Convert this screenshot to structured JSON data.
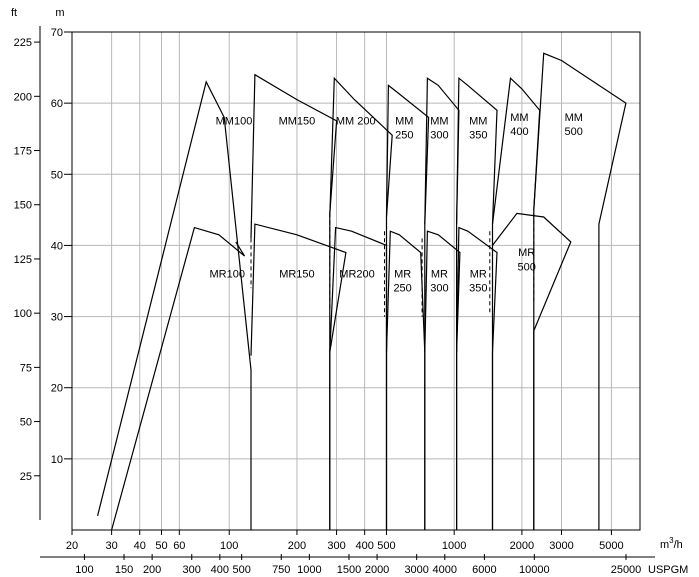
{
  "chart_data": {
    "type": "line",
    "title": "",
    "axes": {
      "y_left_ft": {
        "unit": "ft",
        "ticks": [
          25,
          50,
          75,
          100,
          125,
          150,
          175,
          200,
          225
        ]
      },
      "y_left_m": {
        "unit": "m",
        "ticks": [
          10,
          20,
          30,
          40,
          50,
          60,
          70
        ]
      },
      "x_m3h": {
        "unit": "m3/h",
        "ticks": [
          20,
          30,
          40,
          50,
          60,
          100,
          200,
          300,
          400,
          500,
          1000,
          2000,
          3000,
          5000
        ]
      },
      "x_usgpm": {
        "unit": "USPGM",
        "ticks": [
          100,
          150,
          200,
          300,
          400,
          500,
          750,
          1000,
          1500,
          2000,
          3000,
          4000,
          6000,
          10000,
          25000
        ]
      }
    },
    "ylim_m": [
      0,
      70
    ],
    "grid": true,
    "series": [
      {
        "name": "MM100",
        "points_m3h_m": [
          [
            26,
            2
          ],
          [
            79,
            63
          ],
          [
            95,
            58
          ],
          [
            125,
            22.5
          ],
          [
            125,
            0
          ]
        ]
      },
      {
        "name": "MM150",
        "points_m3h_m": [
          [
            125,
            41
          ],
          [
            130,
            64
          ],
          [
            200,
            60.5
          ],
          [
            300,
            57.5
          ],
          [
            280,
            44.5
          ],
          [
            280,
            0
          ]
        ]
      },
      {
        "name": "MM 200",
        "points_m3h_m": [
          [
            280,
            44
          ],
          [
            293,
            63.5
          ],
          [
            360,
            60.5
          ],
          [
            530,
            55.5
          ],
          [
            500,
            44
          ],
          [
            500,
            0
          ]
        ]
      },
      {
        "name": "MM 250",
        "points_m3h_m": [
          [
            500,
            44
          ],
          [
            510,
            62.5
          ],
          [
            560,
            61.5
          ],
          [
            770,
            58
          ],
          [
            740,
            43
          ],
          [
            740,
            0
          ]
        ]
      },
      {
        "name": "MM 300",
        "points_m3h_m": [
          [
            740,
            43
          ],
          [
            760,
            63.5
          ],
          [
            850,
            62.5
          ],
          [
            1050,
            59
          ],
          [
            1025,
            43
          ],
          [
            1025,
            0
          ]
        ]
      },
      {
        "name": "MM 350",
        "points_m3h_m": [
          [
            1025,
            43
          ],
          [
            1050,
            63.5
          ],
          [
            1150,
            62.5
          ],
          [
            1550,
            59
          ],
          [
            1480,
            43
          ],
          [
            1480,
            0
          ]
        ]
      },
      {
        "name": "MM 400",
        "points_m3h_m": [
          [
            1480,
            43
          ],
          [
            1780,
            63.5
          ],
          [
            2000,
            62
          ],
          [
            2400,
            59
          ],
          [
            2260,
            45
          ],
          [
            2260,
            0
          ]
        ]
      },
      {
        "name": "MM 500",
        "points_m3h_m": [
          [
            2260,
            45
          ],
          [
            2500,
            67
          ],
          [
            3000,
            66
          ],
          [
            5800,
            60
          ],
          [
            4400,
            43
          ],
          [
            4400,
            0
          ]
        ]
      },
      {
        "name": "MR100",
        "points_m3h_m": [
          [
            30,
            0
          ],
          [
            70,
            42.5
          ],
          [
            90,
            41.5
          ],
          [
            117,
            38.5
          ],
          [
            107,
            40.5
          ]
        ]
      },
      {
        "name": "MR150",
        "points_m3h_m": [
          [
            125,
            24.5
          ],
          [
            130,
            43
          ],
          [
            200,
            41.5
          ],
          [
            330,
            39
          ],
          [
            280,
            25
          ],
          [
            280,
            0
          ]
        ]
      },
      {
        "name": "MR200",
        "points_m3h_m": [
          [
            280,
            25
          ],
          [
            297,
            42.5
          ],
          [
            350,
            42
          ],
          [
            500,
            40
          ],
          [
            500,
            25
          ],
          [
            500,
            0
          ]
        ]
      },
      {
        "name": "MR 250",
        "points_m3h_m": [
          [
            500,
            25
          ],
          [
            520,
            42
          ],
          [
            570,
            41.5
          ],
          [
            710,
            39
          ],
          [
            740,
            25
          ],
          [
            740,
            0
          ]
        ]
      },
      {
        "name": "MR 300",
        "points_m3h_m": [
          [
            740,
            25
          ],
          [
            760,
            42
          ],
          [
            850,
            41.5
          ],
          [
            1060,
            39
          ],
          [
            1025,
            25
          ],
          [
            1025,
            0
          ]
        ]
      },
      {
        "name": "MR 350",
        "points_m3h_m": [
          [
            1025,
            25
          ],
          [
            1050,
            42.5
          ],
          [
            1150,
            42
          ],
          [
            1550,
            39
          ],
          [
            1480,
            25
          ],
          [
            1480,
            0
          ]
        ]
      },
      {
        "name": "MR 500",
        "points_m3h_m": [
          [
            1480,
            40
          ],
          [
            1900,
            44.5
          ],
          [
            2500,
            44
          ],
          [
            3300,
            40.5
          ],
          [
            2260,
            28
          ],
          [
            2260,
            0
          ]
        ]
      }
    ],
    "labels": [
      {
        "text": "MM100",
        "at": [
          105,
          57
        ]
      },
      {
        "text": "MM150",
        "at": [
          200,
          57
        ]
      },
      {
        "text": "MM 200",
        "at": [
          365,
          57
        ]
      },
      {
        "text": "MM",
        "at": [
          600,
          57
        ]
      },
      {
        "text": "250",
        "at": [
          600,
          55
        ]
      },
      {
        "text": "MM",
        "at": [
          860,
          57
        ]
      },
      {
        "text": "300",
        "at": [
          860,
          55
        ]
      },
      {
        "text": "MM",
        "at": [
          1280,
          57
        ]
      },
      {
        "text": "350",
        "at": [
          1280,
          55
        ]
      },
      {
        "text": "MM",
        "at": [
          1950,
          57.5
        ]
      },
      {
        "text": "400",
        "at": [
          1950,
          55.5
        ]
      },
      {
        "text": "MM",
        "at": [
          3400,
          57.5
        ]
      },
      {
        "text": "500",
        "at": [
          3400,
          55.5
        ]
      },
      {
        "text": "MR100",
        "at": [
          98,
          35.5
        ]
      },
      {
        "text": "MR150",
        "at": [
          200,
          35.5
        ]
      },
      {
        "text": "MR200",
        "at": [
          370,
          35.5
        ]
      },
      {
        "text": "MR",
        "at": [
          590,
          35.5
        ]
      },
      {
        "text": "250",
        "at": [
          590,
          33.5
        ]
      },
      {
        "text": "MR",
        "at": [
          860,
          35.5
        ]
      },
      {
        "text": "300",
        "at": [
          860,
          33.5
        ]
      },
      {
        "text": "MR",
        "at": [
          1280,
          35.5
        ]
      },
      {
        "text": "350",
        "at": [
          1280,
          33.5
        ]
      },
      {
        "text": "MR",
        "at": [
          2100,
          38.5
        ]
      },
      {
        "text": "500",
        "at": [
          2100,
          36.5
        ]
      }
    ],
    "dashed_lines_m3h_m": [
      [
        [
          125,
          41
        ],
        [
          125,
          34
        ]
      ],
      [
        [
          280,
          43.5
        ],
        [
          280,
          31
        ]
      ],
      [
        [
          490,
          42
        ],
        [
          490,
          30
        ]
      ],
      [
        [
          720,
          41
        ],
        [
          720,
          30
        ]
      ],
      [
        [
          1025,
          41
        ],
        [
          1025,
          30
        ]
      ],
      [
        [
          1440,
          42
        ],
        [
          1440,
          30.5
        ]
      ],
      [
        [
          2260,
          44.5
        ],
        [
          2260,
          32
        ]
      ]
    ]
  }
}
